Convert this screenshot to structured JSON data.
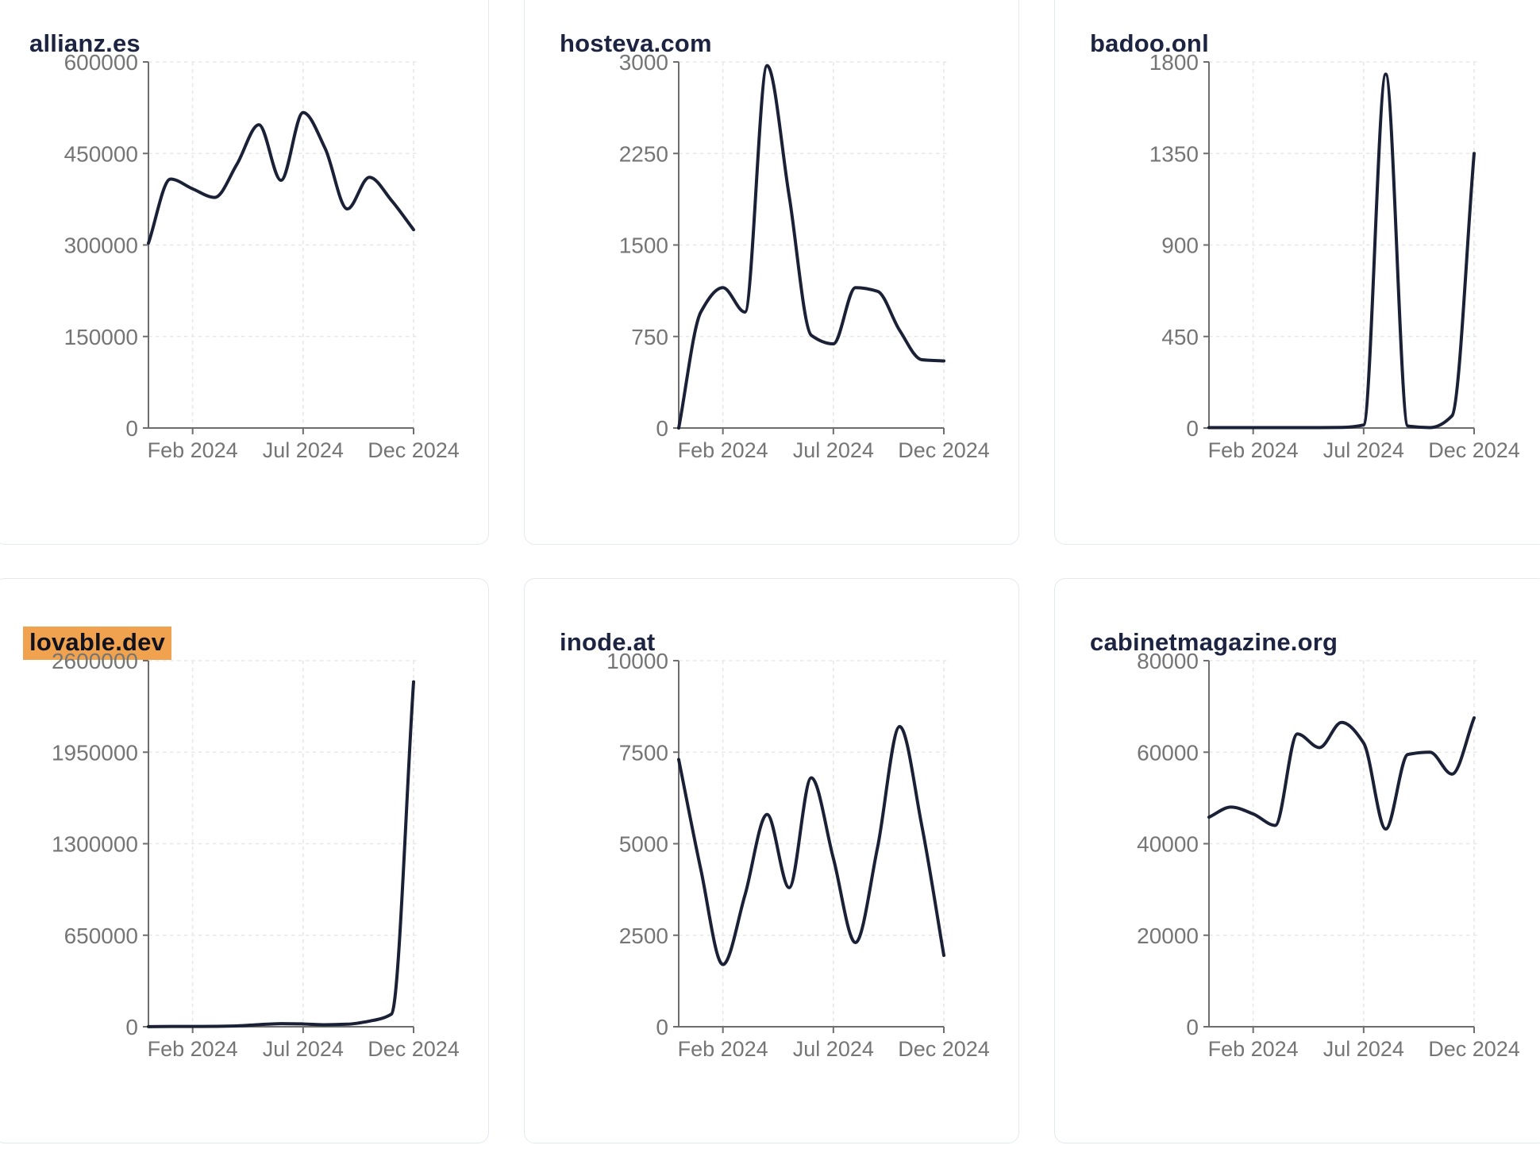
{
  "page": {
    "background": "#ffffff",
    "layout": "3x2-grid-of-line-chart-cards"
  },
  "theme": {
    "card_bg": "#ffffff",
    "card_border": "#e4e9f1",
    "title_color": "#1c2442",
    "line_color": "#1a2136",
    "axis_color": "#6e6e6e",
    "tick_label_color": "#757575",
    "grid_color": "#e8e8e8",
    "highlight_bg": "#f0a24e",
    "highlight_text": "#10131f"
  },
  "chart_data": [
    {
      "type": "line",
      "title": "allianz.es",
      "title_highlighted": false,
      "x": [
        "Dec 2023",
        "Jan 2024",
        "Feb 2024",
        "Mar 2024",
        "Apr 2024",
        "May 2024",
        "Jun 2024",
        "Jul 2024",
        "Aug 2024",
        "Sep 2024",
        "Oct 2024",
        "Nov 2024",
        "Dec 2024"
      ],
      "values": [
        303000,
        408000,
        392000,
        378000,
        432000,
        497000,
        406000,
        517000,
        458000,
        359000,
        411000,
        373000,
        325000
      ],
      "ylim": [
        0,
        600000
      ],
      "yticks": [
        0,
        150000,
        300000,
        450000,
        600000
      ],
      "xticks": [
        {
          "label": "Feb 2024",
          "month_index": 2
        },
        {
          "label": "Jul 2024",
          "month_index": 7
        },
        {
          "label": "Dec 2024",
          "month_index": 12
        }
      ],
      "grid": true,
      "legend": false
    },
    {
      "type": "line",
      "title": "hosteva.com",
      "title_highlighted": false,
      "x": [
        "Dec 2023",
        "Jan 2024",
        "Feb 2024",
        "Mar 2024",
        "Apr 2024",
        "May 2024",
        "Jun 2024",
        "Jul 2024",
        "Aug 2024",
        "Sep 2024",
        "Oct 2024",
        "Nov 2024",
        "Dec 2024"
      ],
      "values": [
        0,
        950,
        1150,
        950,
        2970,
        1900,
        760,
        690,
        1150,
        1120,
        800,
        560,
        550
      ],
      "ylim": [
        0,
        3000
      ],
      "yticks": [
        0,
        750,
        1500,
        2250,
        3000
      ],
      "xticks": [
        {
          "label": "Feb 2024",
          "month_index": 2
        },
        {
          "label": "Jul 2024",
          "month_index": 7
        },
        {
          "label": "Dec 2024",
          "month_index": 12
        }
      ],
      "grid": true,
      "legend": false
    },
    {
      "type": "line",
      "title": "badoo.onl",
      "title_highlighted": false,
      "x": [
        "Dec 2023",
        "Jan 2024",
        "Feb 2024",
        "Mar 2024",
        "Apr 2024",
        "May 2024",
        "Jun 2024",
        "Jul 2024",
        "Aug 2024",
        "Sep 2024",
        "Oct 2024",
        "Nov 2024",
        "Dec 2024"
      ],
      "values": [
        2,
        2,
        2,
        2,
        2,
        2,
        3,
        15,
        1740,
        10,
        2,
        60,
        1350
      ],
      "ylim": [
        0,
        1800
      ],
      "yticks": [
        0,
        450,
        900,
        1350,
        1800
      ],
      "xticks": [
        {
          "label": "Feb 2024",
          "month_index": 2
        },
        {
          "label": "Jul 2024",
          "month_index": 7
        },
        {
          "label": "Dec 2024",
          "month_index": 12
        }
      ],
      "grid": true,
      "legend": false
    },
    {
      "type": "line",
      "title": "lovable.dev",
      "title_highlighted": true,
      "x": [
        "Dec 2023",
        "Jan 2024",
        "Feb 2024",
        "Mar 2024",
        "Apr 2024",
        "May 2024",
        "Jun 2024",
        "Jul 2024",
        "Aug 2024",
        "Sep 2024",
        "Oct 2024",
        "Nov 2024",
        "Dec 2024"
      ],
      "values": [
        1000,
        2000,
        2000,
        3000,
        6000,
        15000,
        22000,
        20000,
        14000,
        18000,
        40000,
        90000,
        2450000
      ],
      "ylim": [
        0,
        2600000
      ],
      "yticks": [
        0,
        650000,
        1300000,
        1950000,
        2600000
      ],
      "xticks": [
        {
          "label": "Feb 2024",
          "month_index": 2
        },
        {
          "label": "Jul 2024",
          "month_index": 7
        },
        {
          "label": "Dec 2024",
          "month_index": 12
        }
      ],
      "grid": true,
      "legend": false
    },
    {
      "type": "line",
      "title": "inode.at",
      "title_highlighted": false,
      "x": [
        "Dec 2023",
        "Jan 2024",
        "Feb 2024",
        "Mar 2024",
        "Apr 2024",
        "May 2024",
        "Jun 2024",
        "Jul 2024",
        "Aug 2024",
        "Sep 2024",
        "Oct 2024",
        "Nov 2024",
        "Dec 2024"
      ],
      "values": [
        7300,
        4300,
        1700,
        3600,
        5800,
        3800,
        6800,
        4600,
        2300,
        4900,
        8200,
        5500,
        1950
      ],
      "ylim": [
        0,
        10000
      ],
      "yticks": [
        0,
        2500,
        5000,
        7500,
        10000
      ],
      "xticks": [
        {
          "label": "Feb 2024",
          "month_index": 2
        },
        {
          "label": "Jul 2024",
          "month_index": 7
        },
        {
          "label": "Dec 2024",
          "month_index": 12
        }
      ],
      "grid": true,
      "legend": false
    },
    {
      "type": "line",
      "title": "cabinetmagazine.org",
      "title_highlighted": false,
      "x": [
        "Dec 2023",
        "Jan 2024",
        "Feb 2024",
        "Mar 2024",
        "Apr 2024",
        "May 2024",
        "Jun 2024",
        "Jul 2024",
        "Aug 2024",
        "Sep 2024",
        "Oct 2024",
        "Nov 2024",
        "Dec 2024"
      ],
      "values": [
        45800,
        48000,
        46500,
        44000,
        64000,
        61000,
        66500,
        62000,
        43200,
        59500,
        60000,
        55200,
        67500
      ],
      "ylim": [
        0,
        80000
      ],
      "yticks": [
        0,
        20000,
        40000,
        60000,
        80000
      ],
      "xticks": [
        {
          "label": "Feb 2024",
          "month_index": 2
        },
        {
          "label": "Jul 2024",
          "month_index": 7
        },
        {
          "label": "Dec 2024",
          "month_index": 12
        }
      ],
      "grid": true,
      "legend": false
    }
  ]
}
